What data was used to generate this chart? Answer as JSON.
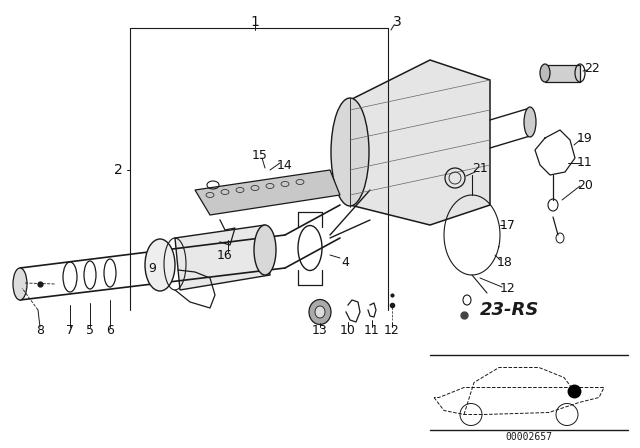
{
  "background_color": "#ffffff",
  "diagram_code": "23-RS",
  "image_code": "00002657",
  "line_color": "#1a1a1a",
  "lw_main": 1.0,
  "lw_thin": 0.6,
  "label_fontsize": 9,
  "label_color": "#111111"
}
